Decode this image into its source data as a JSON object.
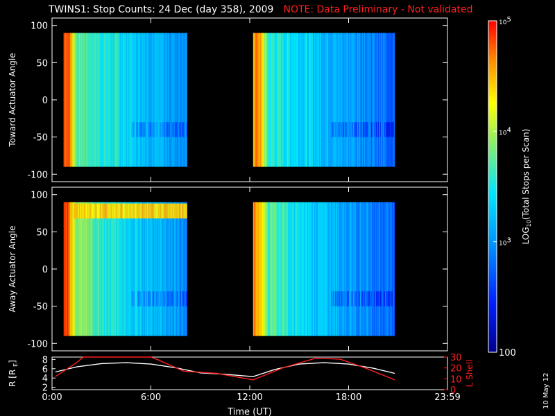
{
  "header": {
    "title": "TWINS1: Stop Counts: 24 Dec (day 358), 2009",
    "note": "NOTE: Data Preliminary - Not validated"
  },
  "datestamp": "10 May 12",
  "colors": {
    "background": "#000000",
    "note_red": "#ff2020",
    "axis_white": "#ffffff",
    "orbit_red": "#ff2020"
  },
  "chart_data": [
    {
      "type": "heatmap",
      "ylabel": "Toward Actuator Angle",
      "ylim": [
        -110,
        110
      ],
      "yticks": [
        100,
        50,
        0,
        -50,
        -100
      ],
      "xlim": [
        0,
        24
      ],
      "data_y_range": [
        -90,
        90
      ],
      "data_x_segments": [
        [
          0.7,
          8.2
        ],
        [
          12.2,
          20.8
        ]
      ]
    },
    {
      "type": "heatmap",
      "ylabel": "Away Actuator Angle",
      "ylim": [
        -110,
        110
      ],
      "yticks": [
        100,
        50,
        0,
        -50,
        -100
      ],
      "xlim": [
        0,
        24
      ],
      "data_y_range": [
        -90,
        90
      ],
      "data_x_segments": [
        [
          0.7,
          8.2
        ],
        [
          12.2,
          20.8
        ]
      ]
    },
    {
      "type": "line",
      "xlabel": "Time (UT)",
      "xlim": [
        0,
        24
      ],
      "xticks": [
        {
          "value": 0,
          "label": "0:00"
        },
        {
          "value": 6,
          "label": "6:00"
        },
        {
          "value": 12,
          "label": "12:00"
        },
        {
          "value": 18,
          "label": "18:00"
        },
        {
          "value": 24,
          "label": "23:59"
        }
      ],
      "ylabel_left": "R [R",
      "ylabel_left_sub": "E",
      "ylabel_left_close": "]",
      "ylim_left": [
        1.5,
        8.5
      ],
      "yticks_left": [
        2,
        4,
        6,
        8
      ],
      "ylabel_right": "L Shell",
      "ylim_right": [
        0,
        30
      ],
      "yticks_right": [
        0,
        10,
        20,
        30
      ],
      "series": [
        {
          "axis": "left",
          "color": "#ffffff",
          "x": [
            0.2,
            1.5,
            3,
            4.5,
            6,
            7.5,
            9,
            10.5,
            12.2,
            13.5,
            15,
            16.5,
            18,
            19.5,
            20.8
          ],
          "y": [
            5.3,
            6.4,
            7.1,
            7.3,
            7.0,
            6.2,
            5.1,
            4.8,
            4.3,
            5.8,
            7.0,
            7.3,
            7.0,
            6.1,
            5.0
          ]
        },
        {
          "axis": "right",
          "color": "#ff2020",
          "x": [
            0.2,
            1.5,
            1.9,
            6.0,
            6.5,
            8.0,
            10.0,
            12.2,
            14.0,
            16.0,
            17.5,
            19.0,
            20.8
          ],
          "y": [
            12,
            25,
            30,
            30,
            27,
            17,
            15,
            9,
            20,
            29,
            28,
            20,
            9
          ]
        }
      ]
    },
    {
      "type": "heatmap",
      "role": "colorbar",
      "label": "LOG",
      "label_sub": "10",
      "label_rest": "(Total Stops per Scan)",
      "scale": "log",
      "range": [
        100,
        100000
      ],
      "ticks": [
        {
          "value": 100,
          "label": "100"
        },
        {
          "value": 1000,
          "label": "10",
          "exp": "3"
        },
        {
          "value": 10000,
          "label": "10",
          "exp": "4"
        },
        {
          "value": 100000,
          "label": "10",
          "exp": "5"
        }
      ]
    }
  ]
}
